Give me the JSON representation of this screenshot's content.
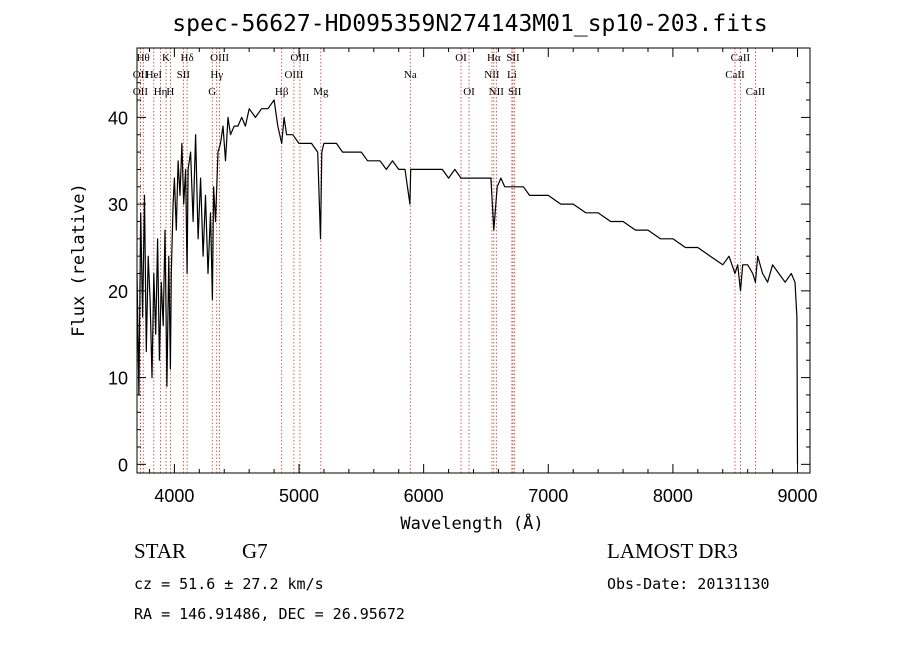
{
  "chart_data": {
    "type": "line",
    "title": "spec-56627-HD095359N274143M01_sp10-203.fits",
    "xlabel": "Wavelength (Å)",
    "ylabel": "Flux (relative)",
    "xlim": [
      3700,
      9100
    ],
    "ylim": [
      -1,
      48
    ],
    "x_ticks": [
      4000,
      5000,
      6000,
      7000,
      8000,
      9000
    ],
    "y_ticks": [
      0,
      10,
      20,
      30,
      40
    ],
    "series": [
      {
        "name": "flux",
        "x": [
          3700,
          3715,
          3730,
          3745,
          3760,
          3775,
          3790,
          3805,
          3820,
          3835,
          3850,
          3865,
          3880,
          3895,
          3910,
          3925,
          3933,
          3940,
          3955,
          3968,
          3975,
          3990,
          4000,
          4015,
          4030,
          4045,
          4060,
          4075,
          4090,
          4102,
          4110,
          4130,
          4150,
          4170,
          4190,
          4210,
          4230,
          4250,
          4270,
          4290,
          4305,
          4315,
          4330,
          4350,
          4370,
          4390,
          4410,
          4430,
          4450,
          4480,
          4510,
          4540,
          4570,
          4600,
          4650,
          4700,
          4750,
          4800,
          4830,
          4861,
          4880,
          4900,
          4950,
          5000,
          5050,
          5100,
          5150,
          5172,
          5183,
          5200,
          5250,
          5300,
          5350,
          5400,
          5450,
          5500,
          5550,
          5600,
          5650,
          5700,
          5750,
          5800,
          5850,
          5890,
          5896,
          5920,
          5950,
          6000,
          6050,
          6100,
          6150,
          6200,
          6250,
          6300,
          6350,
          6400,
          6450,
          6500,
          6540,
          6563,
          6590,
          6620,
          6650,
          6700,
          6750,
          6800,
          6850,
          6900,
          6950,
          7000,
          7100,
          7200,
          7300,
          7400,
          7500,
          7600,
          7700,
          7800,
          7900,
          8000,
          8100,
          8200,
          8300,
          8400,
          8450,
          8498,
          8520,
          8542,
          8560,
          8600,
          8640,
          8662,
          8680,
          8720,
          8760,
          8800,
          8850,
          8900,
          8950,
          8980,
          8995,
          9000
        ],
        "values": [
          22,
          8,
          29,
          17,
          31,
          13,
          24,
          19,
          10,
          22,
          15,
          26,
          12,
          21,
          16,
          27,
          18,
          9,
          24,
          11,
          22,
          30,
          33,
          27,
          35,
          31,
          37,
          30,
          34,
          22,
          34,
          36,
          28,
          38,
          26,
          33,
          24,
          31,
          22,
          29,
          19,
          32,
          28,
          36,
          37,
          39,
          35,
          40,
          38,
          39,
          39,
          40,
          39,
          41,
          40,
          41,
          41,
          42,
          39,
          37,
          40,
          38,
          38,
          37,
          37,
          37,
          36,
          26,
          36,
          37,
          37,
          37,
          36,
          36,
          36,
          36,
          35,
          35,
          35,
          34,
          35,
          34,
          34,
          30,
          34,
          34,
          34,
          34,
          34,
          34,
          34,
          33,
          34,
          33,
          33,
          33,
          33,
          33,
          33,
          27,
          32,
          33,
          32,
          32,
          32,
          32,
          31,
          31,
          31,
          31,
          30,
          30,
          29,
          29,
          28,
          28,
          27,
          27,
          26,
          26,
          25,
          25,
          24,
          23,
          24,
          22,
          23,
          20,
          23,
          23,
          22,
          21,
          24,
          22,
          21,
          23,
          22,
          21,
          22,
          21,
          17,
          0
        ]
      }
    ],
    "line_markers": [
      {
        "x": 3750,
        "row": 0,
        "label": "Hθ"
      },
      {
        "x": 3727,
        "row": 1,
        "label": "OII"
      },
      {
        "x": 3727,
        "row": 2,
        "label": "OII"
      },
      {
        "x": 3835,
        "row": 1,
        "label": "HeI"
      },
      {
        "x": 3889,
        "row": 2,
        "label": "Hη"
      },
      {
        "x": 3933,
        "row": 0,
        "label": "K"
      },
      {
        "x": 3968,
        "row": 2,
        "label": "H"
      },
      {
        "x": 4072,
        "row": 1,
        "label": "SII"
      },
      {
        "x": 4102,
        "row": 0,
        "label": "Hδ"
      },
      {
        "x": 4304,
        "row": 2,
        "label": "G"
      },
      {
        "x": 4340,
        "row": 1,
        "label": "Hγ"
      },
      {
        "x": 4363,
        "row": 0,
        "label": "OIII"
      },
      {
        "x": 4861,
        "row": 2,
        "label": "Hβ"
      },
      {
        "x": 4959,
        "row": 1,
        "label": "OIII"
      },
      {
        "x": 5007,
        "row": 0,
        "label": "OIII"
      },
      {
        "x": 5175,
        "row": 2,
        "label": "Mg"
      },
      {
        "x": 5893,
        "row": 1,
        "label": "Na"
      },
      {
        "x": 6300,
        "row": 0,
        "label": "OI"
      },
      {
        "x": 6364,
        "row": 2,
        "label": "OI"
      },
      {
        "x": 6548,
        "row": 1,
        "label": "NII"
      },
      {
        "x": 6563,
        "row": 0,
        "label": "Hα"
      },
      {
        "x": 6583,
        "row": 2,
        "label": "NII"
      },
      {
        "x": 6708,
        "row": 1,
        "label": "Li"
      },
      {
        "x": 6717,
        "row": 0,
        "label": "SII"
      },
      {
        "x": 6731,
        "row": 2,
        "label": "SII"
      },
      {
        "x": 8498,
        "row": 1,
        "label": "CaII"
      },
      {
        "x": 8542,
        "row": 0,
        "label": "CaII"
      },
      {
        "x": 8662,
        "row": 2,
        "label": "CaII"
      }
    ]
  },
  "info": {
    "class": "STAR",
    "subclass": "G7",
    "survey": "LAMOST DR3",
    "cz": "cz = 51.6 ± 27.2 km/s",
    "obs_date": "Obs-Date: 20131130",
    "radec": "RA = 146.91486, DEC =  26.95672"
  },
  "colors": {
    "line": "#000000",
    "marker": "#c0392b",
    "axis": "#000000"
  }
}
